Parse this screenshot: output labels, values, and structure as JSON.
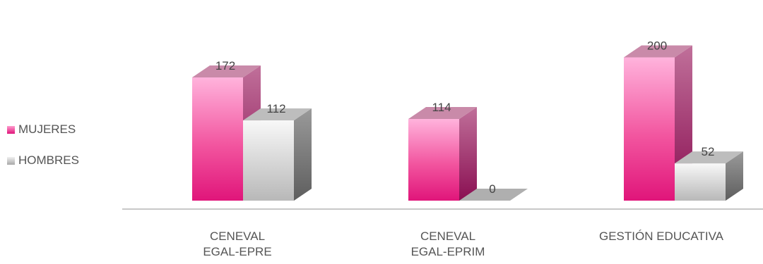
{
  "chart_data": {
    "type": "bar",
    "categories": [
      [
        "CENEVAL",
        "EGAL-EPRE"
      ],
      [
        "CENEVAL",
        "EGAL-EPRIM"
      ],
      [
        "GESTIÓN EDUCATIVA"
      ]
    ],
    "series": [
      {
        "name": "MUJERES",
        "values": [
          172,
          114,
          200
        ],
        "color": "#e8157f"
      },
      {
        "name": "HOMBRES",
        "values": [
          112,
          0,
          52
        ],
        "color": "#cfcfcf"
      }
    ],
    "data_labels": [
      "172",
      "114",
      "200",
      "112",
      "0",
      "52"
    ],
    "ylim": [
      0,
      210
    ],
    "legend_position": "left",
    "grid": false,
    "style": "3d-column"
  }
}
